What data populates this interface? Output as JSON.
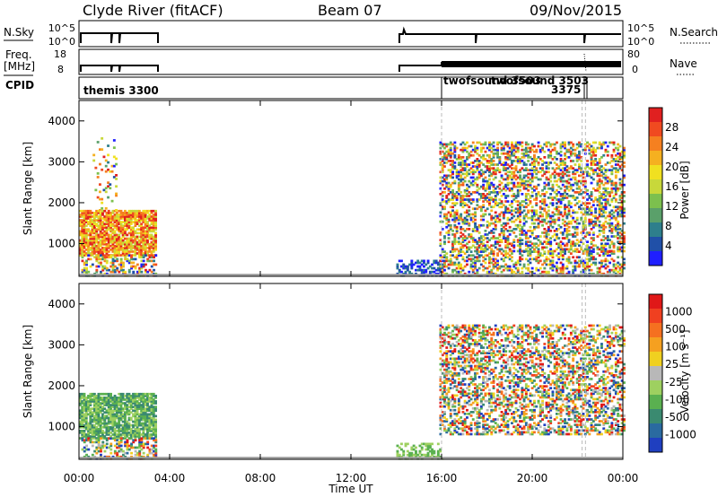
{
  "header": {
    "station": "Clyde River (fitACF)",
    "beam": "Beam 07",
    "date": "09/Nov/2015"
  },
  "strips": {
    "nsky_label": "N.Sky",
    "nsky_ticks": [
      "10^5",
      "10^0"
    ],
    "nsearch_ticks": [
      "10^5",
      "10^0"
    ],
    "nsearch_label": "N.Search",
    "freq_label_1": "Freq.",
    "freq_label_2": "[MHz]",
    "freq_ticks": [
      "18",
      "8"
    ],
    "nave_ticks": [
      "80",
      "0"
    ],
    "nave_label": "Nave",
    "cpid_label": "CPID",
    "cpid_entries": [
      "themis 3300",
      "twofsound 3503",
      "twofsound 3503",
      "3375"
    ]
  },
  "colors": {
    "background": "#ffffff",
    "grid": "#bbbbbb",
    "ground_scatter": "#9a9a9a"
  },
  "chart_data": [
    {
      "type": "heatmap",
      "title": "",
      "xlabel": "",
      "ylabel": "Slant Range [km]",
      "xlim": [
        "00:00",
        "24:00"
      ],
      "ylim": [
        200,
        4500
      ],
      "grid": false,
      "colorbar": {
        "label": "Power [dB]",
        "tick_labels": [
          "28",
          "24",
          "20",
          "16",
          "12",
          "8",
          "4"
        ],
        "colors": [
          "#1f1fff",
          "#2050a8",
          "#2e7f8c",
          "#5aa06a",
          "#7cc04e",
          "#c8d83a",
          "#f0e020",
          "#f5b020",
          "#f58020",
          "#f04a20",
          "#e02020"
        ]
      },
      "regions": [
        {
          "t0": 0.0,
          "t1": 3.4,
          "r0": 700,
          "r1": 1800,
          "level": "high"
        },
        {
          "t0": 0.1,
          "t1": 3.4,
          "r0": 200,
          "r1": 700,
          "level": "mixed"
        },
        {
          "t0": 0.6,
          "t1": 1.6,
          "r0": 1800,
          "r1": 3600,
          "level": "sparse"
        },
        {
          "t0": 14.0,
          "t1": 16.0,
          "r0": 200,
          "r1": 600,
          "level": "low"
        },
        {
          "t0": 15.9,
          "t1": 24.0,
          "r0": 800,
          "r1": 3500,
          "level": "mixed"
        },
        {
          "t0": 15.9,
          "t1": 24.0,
          "r0": 200,
          "r1": 800,
          "level": "mixed"
        }
      ]
    },
    {
      "type": "heatmap",
      "title": "",
      "xlabel": "Time UT",
      "ylabel": "Slant Range [km]",
      "xlim": [
        "00:00",
        "24:00"
      ],
      "ylim": [
        200,
        4500
      ],
      "x_tick_labels": [
        "00:00",
        "04:00",
        "08:00",
        "12:00",
        "16:00",
        "20:00",
        "00:00"
      ],
      "y_tick_labels": [
        "1000",
        "2000",
        "3000",
        "4000"
      ],
      "grid": false,
      "colorbar": {
        "label": "Velocity [m s⁻¹]",
        "tick_labels": [
          "1000",
          "500",
          "100",
          "25",
          "-25",
          "-100",
          "-500",
          "-1000"
        ],
        "colors": [
          "#1f3fc0",
          "#2a6aa0",
          "#3a8a70",
          "#5ab050",
          "#9ed060",
          "#b8b8b8",
          "#f0d020",
          "#f5a020",
          "#f57020",
          "#f04020",
          "#e01818"
        ]
      },
      "regions": [
        {
          "t0": 0.0,
          "t1": 3.4,
          "r0": 700,
          "r1": 1800,
          "level": "green"
        },
        {
          "t0": 0.1,
          "t1": 3.4,
          "r0": 200,
          "r1": 700,
          "level": "mixed"
        },
        {
          "t0": 14.0,
          "t1": 16.0,
          "r0": 200,
          "r1": 600,
          "level": "lightgreen"
        },
        {
          "t0": 15.9,
          "t1": 24.0,
          "r0": 800,
          "r1": 3500,
          "level": "mixed"
        }
      ]
    }
  ]
}
